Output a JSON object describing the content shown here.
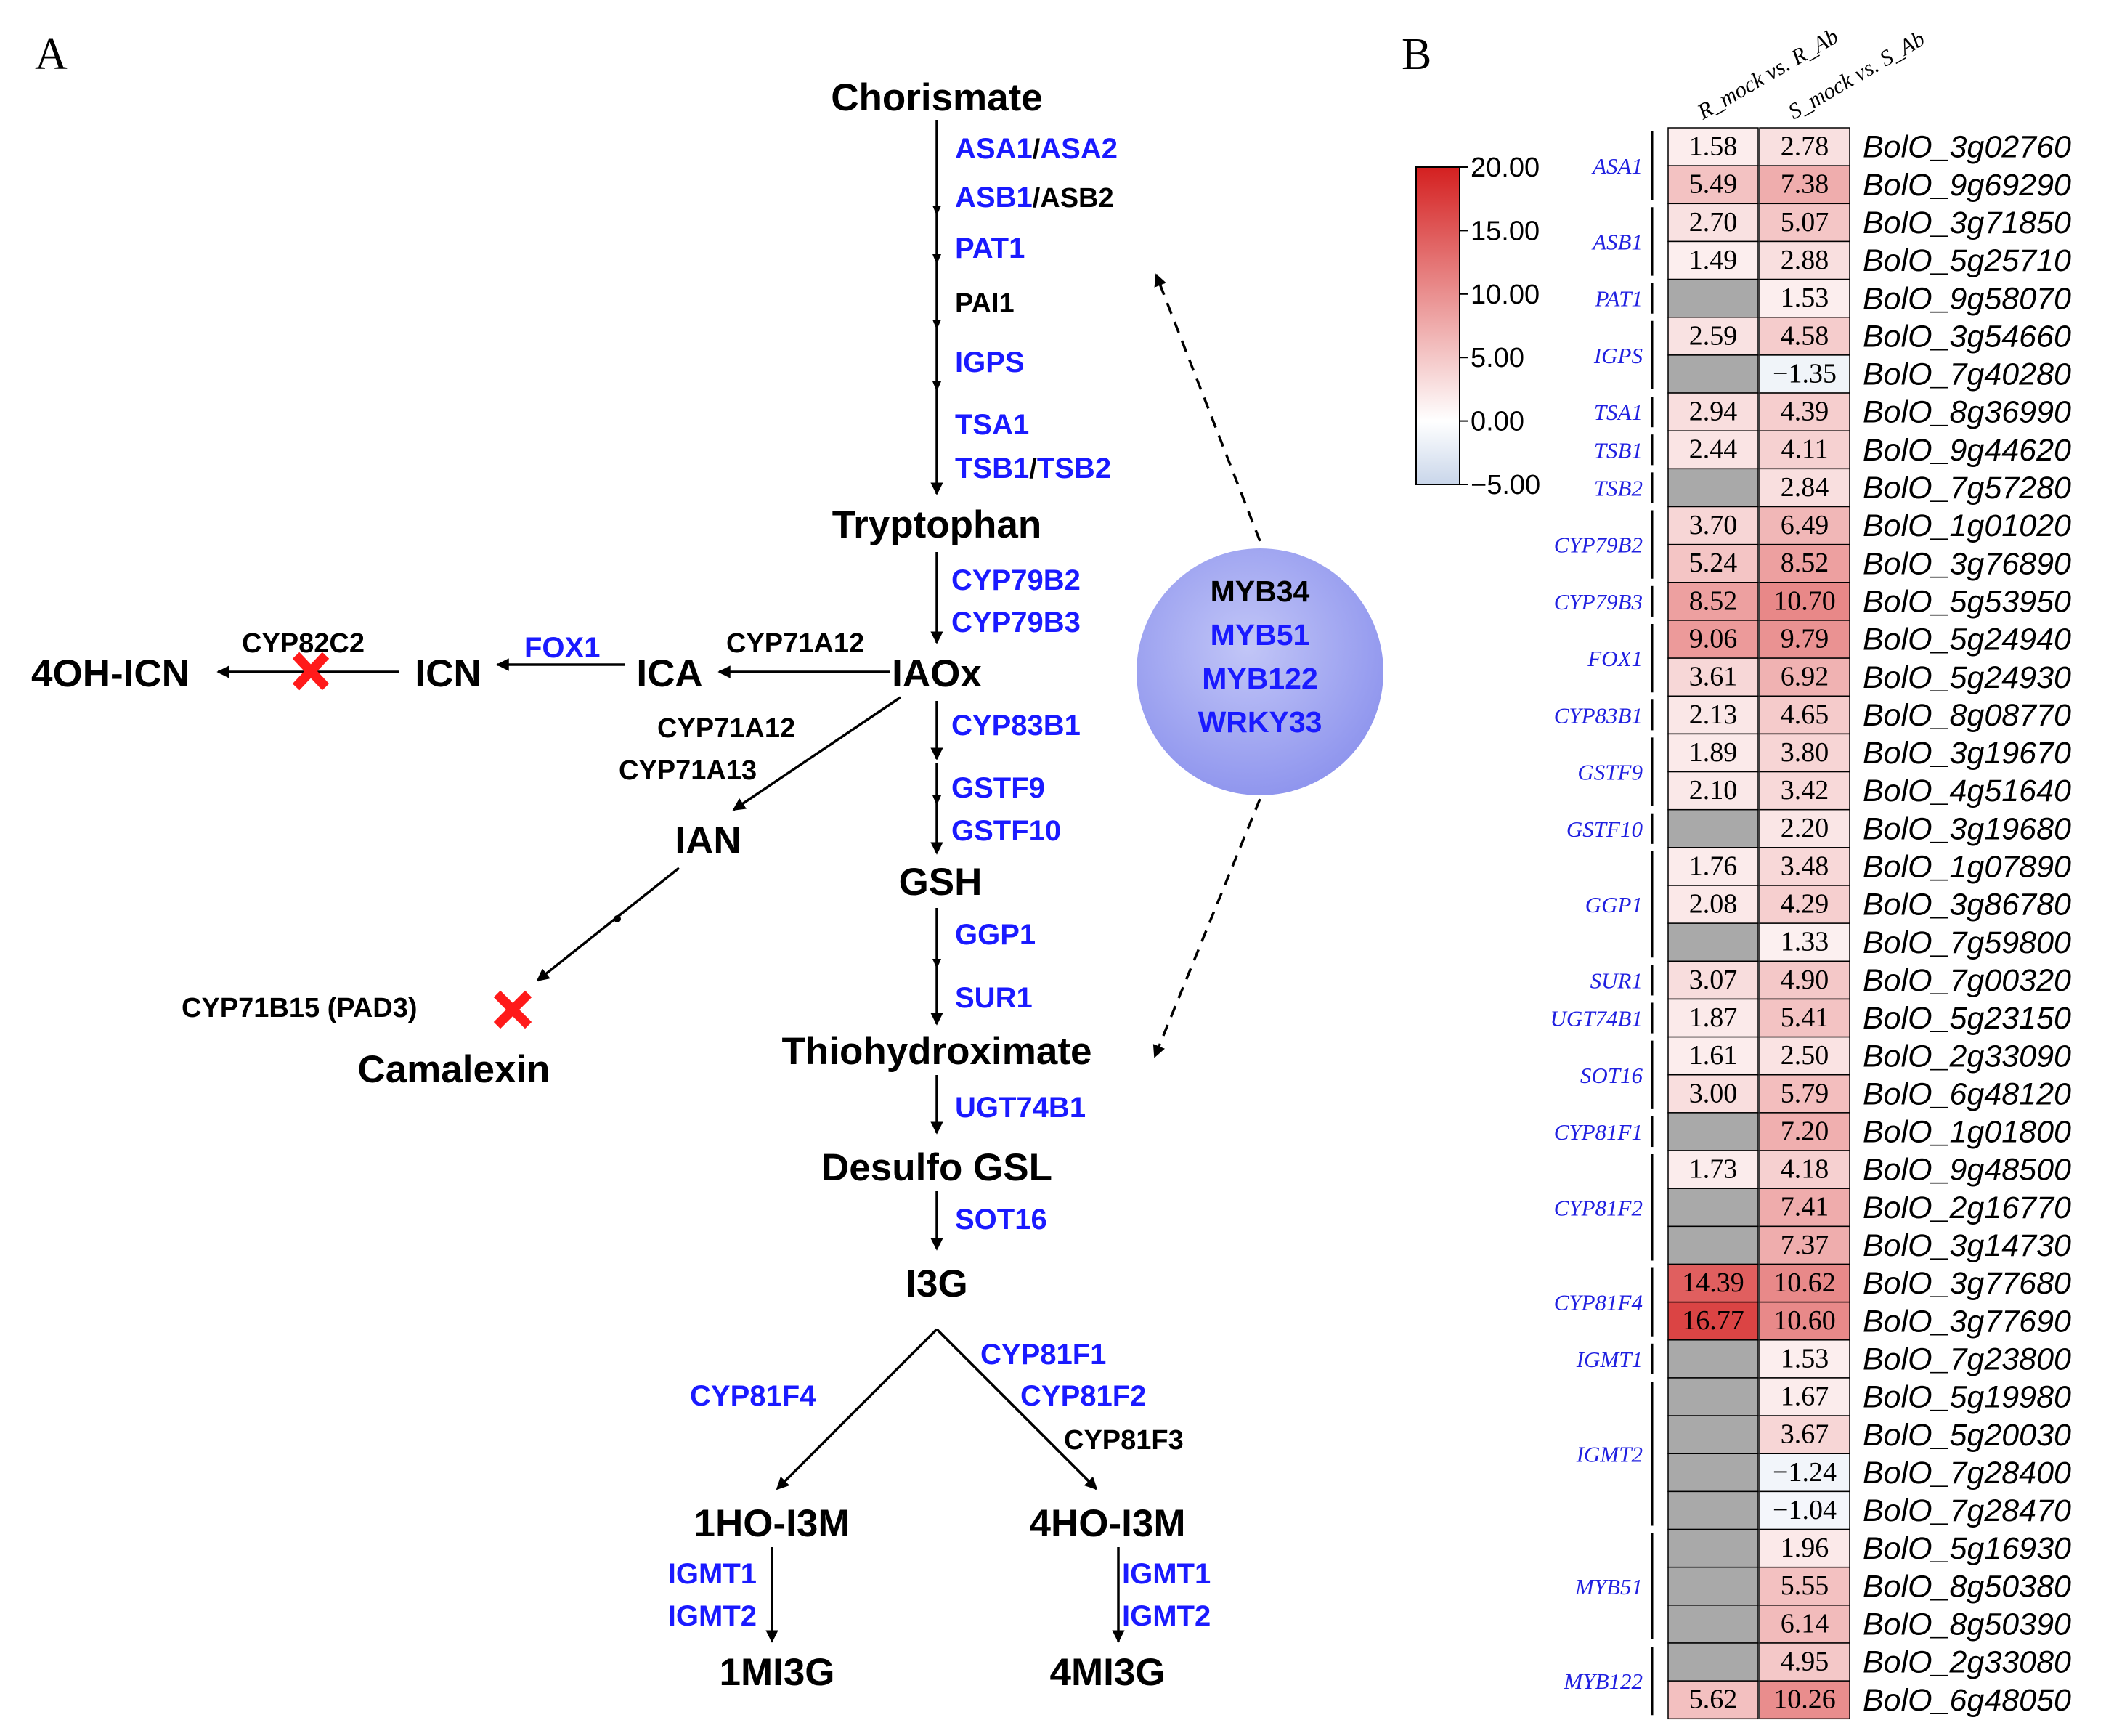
{
  "panel_a": {
    "label": "A",
    "metabolites": {
      "chorismate": "Chorismate",
      "tryptophan": "Tryptophan",
      "iaox": "IAOx",
      "ica": "ICA",
      "icn": "ICN",
      "oh_icn": "4OH-ICN",
      "ian": "IAN",
      "camalexin": "Camalexin",
      "gsh": "GSH",
      "thiohydroximate": "Thiohydroximate",
      "desulfo": "Desulfo GSL",
      "i3g": "I3G",
      "ho1": "1HO-I3M",
      "ho4": "4HO-I3M",
      "mi1": "1MI3G",
      "mi4": "4MI3G"
    },
    "enzymes": {
      "asa1": "ASA1",
      "slash": "/",
      "asa2": "ASA2",
      "asb1": "ASB1",
      "asb2": "ASB2",
      "pat1": "PAT1",
      "pai1": "PAI1",
      "igps": "IGPS",
      "tsa1": "TSA1",
      "tsb1": "TSB1",
      "tsb2": "TSB2",
      "cyp79b2": "CYP79B2",
      "cyp79b3": "CYP79B3",
      "cyp71a12_top": "CYP71A12",
      "fox1": "FOX1",
      "cyp82c2": "CYP82C2",
      "cyp71a12": "CYP71A12",
      "cyp71a13": "CYP71A13",
      "cyp71b15": "CYP71B15 (PAD3)",
      "cyp83b1": "CYP83B1",
      "gstf9": "GSTF9",
      "gstf10": "GSTF10",
      "ggp1": "GGP1",
      "sur1": "SUR1",
      "ugt74b1": "UGT74B1",
      "sot16": "SOT16",
      "cyp81f4": "CYP81F4",
      "cyp81f1": "CYP81F1",
      "cyp81f2": "CYP81F2",
      "cyp81f3": "CYP81F3",
      "igmt1_l": "IGMT1",
      "igmt2_l": "IGMT2",
      "igmt1_r": "IGMT1",
      "igmt2_r": "IGMT2"
    },
    "regulators": {
      "myb34": "MYB34",
      "myb51": "MYB51",
      "myb122": "MYB122",
      "wrky33": "WRKY33"
    },
    "colors": {
      "blue_gene": "#1a1aff",
      "black_gene": "#000000",
      "blocked_mark": "#ff1a1a",
      "regulator_fill": "#9fa4f0"
    }
  },
  "panel_b": {
    "label": "B",
    "column_headers": [
      "R_mock vs. R_Ab",
      "S_mock vs. S_Ab"
    ],
    "legend": {
      "ticks": [
        "20.00",
        "15.00",
        "10.00",
        "5.00",
        "0.00",
        "−5.00"
      ],
      "min": -5,
      "max": 20
    },
    "groups": [
      {
        "gene": "ASA1",
        "rows": 2
      },
      {
        "gene": "ASB1",
        "rows": 2
      },
      {
        "gene": "PAT1",
        "rows": 1
      },
      {
        "gene": "IGPS",
        "rows": 2
      },
      {
        "gene": "TSA1",
        "rows": 1
      },
      {
        "gene": "TSB1",
        "rows": 1
      },
      {
        "gene": "TSB2",
        "rows": 1
      },
      {
        "gene": "CYP79B2",
        "rows": 2
      },
      {
        "gene": "CYP79B3",
        "rows": 1
      },
      {
        "gene": "FOX1",
        "rows": 2
      },
      {
        "gene": "CYP83B1",
        "rows": 1
      },
      {
        "gene": "GSTF9",
        "rows": 2
      },
      {
        "gene": "GSTF10",
        "rows": 1
      },
      {
        "gene": "GGP1",
        "rows": 3
      },
      {
        "gene": "SUR1",
        "rows": 1
      },
      {
        "gene": "UGT74B1",
        "rows": 1
      },
      {
        "gene": "SOT16",
        "rows": 2
      },
      {
        "gene": "CYP81F1",
        "rows": 1
      },
      {
        "gene": "CYP81F2",
        "rows": 3
      },
      {
        "gene": "CYP81F4",
        "rows": 2
      },
      {
        "gene": "IGMT1",
        "rows": 1
      },
      {
        "gene": "IGMT2",
        "rows": 4
      },
      {
        "gene": "MYB51",
        "rows": 3
      },
      {
        "gene": "MYB122",
        "rows": 2
      }
    ],
    "rows": [
      {
        "id": "BolO_3g02760",
        "r": "1.58",
        "s": "2.78"
      },
      {
        "id": "BolO_9g69290",
        "r": "5.49",
        "s": "7.38"
      },
      {
        "id": "BolO_3g71850",
        "r": "2.70",
        "s": "5.07"
      },
      {
        "id": "BolO_5g25710",
        "r": "1.49",
        "s": "2.88"
      },
      {
        "id": "BolO_9g58070",
        "r": null,
        "s": "1.53"
      },
      {
        "id": "BolO_3g54660",
        "r": "2.59",
        "s": "4.58"
      },
      {
        "id": "BolO_7g40280",
        "r": null,
        "s": "−1.35"
      },
      {
        "id": "BolO_8g36990",
        "r": "2.94",
        "s": "4.39"
      },
      {
        "id": "BolO_9g44620",
        "r": "2.44",
        "s": "4.11"
      },
      {
        "id": "BolO_7g57280",
        "r": null,
        "s": "2.84"
      },
      {
        "id": "BolO_1g01020",
        "r": "3.70",
        "s": "6.49"
      },
      {
        "id": "BolO_3g76890",
        "r": "5.24",
        "s": "8.52"
      },
      {
        "id": "BolO_5g53950",
        "r": "8.52",
        "s": "10.70"
      },
      {
        "id": "BolO_5g24940",
        "r": "9.06",
        "s": "9.79"
      },
      {
        "id": "BolO_5g24930",
        "r": "3.61",
        "s": "6.92"
      },
      {
        "id": "BolO_8g08770",
        "r": "2.13",
        "s": "4.65"
      },
      {
        "id": "BolO_3g19670",
        "r": "1.89",
        "s": "3.80"
      },
      {
        "id": "BolO_4g51640",
        "r": "2.10",
        "s": "3.42"
      },
      {
        "id": "BolO_3g19680",
        "r": null,
        "s": "2.20"
      },
      {
        "id": "BolO_1g07890",
        "r": "1.76",
        "s": "3.48"
      },
      {
        "id": "BolO_3g86780",
        "r": "2.08",
        "s": "4.29"
      },
      {
        "id": "BolO_7g59800",
        "r": null,
        "s": "1.33"
      },
      {
        "id": "BolO_7g00320",
        "r": "3.07",
        "s": "4.90"
      },
      {
        "id": "BolO_5g23150",
        "r": "1.87",
        "s": "5.41"
      },
      {
        "id": "BolO_2g33090",
        "r": "1.61",
        "s": "2.50"
      },
      {
        "id": "BolO_6g48120",
        "r": "3.00",
        "s": "5.79"
      },
      {
        "id": "BolO_1g01800",
        "r": null,
        "s": "7.20"
      },
      {
        "id": "BolO_9g48500",
        "r": "1.73",
        "s": "4.18"
      },
      {
        "id": "BolO_2g16770",
        "r": null,
        "s": "7.41"
      },
      {
        "id": "BolO_3g14730",
        "r": null,
        "s": "7.37"
      },
      {
        "id": "BolO_3g77680",
        "r": "14.39",
        "s": "10.62"
      },
      {
        "id": "BolO_3g77690",
        "r": "16.77",
        "s": "10.60"
      },
      {
        "id": "BolO_7g23800",
        "r": null,
        "s": "1.53"
      },
      {
        "id": "BolO_5g19980",
        "r": null,
        "s": "1.67"
      },
      {
        "id": "BolO_5g20030",
        "r": null,
        "s": "3.67"
      },
      {
        "id": "BolO_7g28400",
        "r": null,
        "s": "−1.24"
      },
      {
        "id": "BolO_7g28470",
        "r": null,
        "s": "−1.04"
      },
      {
        "id": "BolO_5g16930",
        "r": null,
        "s": "1.96"
      },
      {
        "id": "BolO_8g50380",
        "r": null,
        "s": "5.55"
      },
      {
        "id": "BolO_8g50390",
        "r": null,
        "s": "6.14"
      },
      {
        "id": "BolO_2g33080",
        "r": null,
        "s": "4.95"
      },
      {
        "id": "BolO_6g48050",
        "r": "5.62",
        "s": "10.26"
      }
    ],
    "colors": {
      "high": "#d42020",
      "zero": "#ffffff",
      "low": "#c9d6ea",
      "missing": "#a9a9a9"
    }
  }
}
